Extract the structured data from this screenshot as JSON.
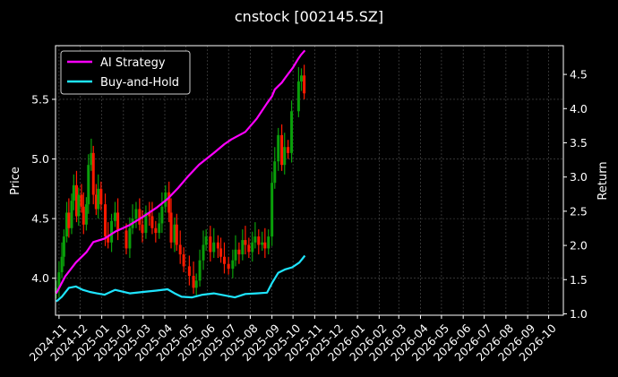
{
  "chart_data": {
    "type": "line",
    "title": "cnstock [002145.SZ]",
    "ylabel_left": "Price",
    "ylabel_right": "Return",
    "xlim": [
      "2024-10-27",
      "2026-10-22"
    ],
    "ylim_left": [
      3.69,
      5.95
    ],
    "ylim_right": [
      0.98,
      4.92
    ],
    "x_ticks": [
      "2024-11",
      "2024-12",
      "2025-01",
      "2025-02",
      "2025-03",
      "2025-04",
      "2025-05",
      "2025-06",
      "2025-07",
      "2025-08",
      "2025-09",
      "2025-10",
      "2025-11",
      "2025-12",
      "2026-01",
      "2026-02",
      "2026-03",
      "2026-04",
      "2026-05",
      "2026-06",
      "2026-07",
      "2026-08",
      "2026-09",
      "2026-10"
    ],
    "y_ticks_left": [
      "4.0",
      "4.5",
      "5.0",
      "5.5"
    ],
    "y_ticks_right": [
      "1.0",
      "1.5",
      "2.0",
      "2.5",
      "3.0",
      "3.5",
      "4.0",
      "4.5"
    ],
    "grid": true,
    "legend_position": "top-left",
    "price_series": {
      "style": "candles",
      "up_color": "#0a9f0a",
      "down_color": "#ff1a00",
      "dates": [
        "2024-10-28",
        "2024-11-01",
        "2024-11-05",
        "2024-11-08",
        "2024-11-12",
        "2024-11-15",
        "2024-11-19",
        "2024-11-22",
        "2024-11-26",
        "2024-11-29",
        "2024-12-03",
        "2024-12-06",
        "2024-12-10",
        "2024-12-13",
        "2024-12-17",
        "2024-12-20",
        "2024-12-24",
        "2024-12-27",
        "2024-12-31",
        "2025-01-06",
        "2025-01-10",
        "2025-01-15",
        "2025-01-20",
        "2025-01-24",
        "2025-02-05",
        "2025-02-10",
        "2025-02-14",
        "2025-02-19",
        "2025-02-24",
        "2025-02-28",
        "2025-03-05",
        "2025-03-10",
        "2025-03-14",
        "2025-03-19",
        "2025-03-24",
        "2025-03-28",
        "2025-04-02",
        "2025-04-07",
        "2025-04-10",
        "2025-04-15",
        "2025-04-18",
        "2025-04-23",
        "2025-04-28",
        "2025-05-06",
        "2025-05-12",
        "2025-05-16",
        "2025-05-21",
        "2025-05-26",
        "2025-05-30",
        "2025-06-05",
        "2025-06-10",
        "2025-06-16",
        "2025-06-20",
        "2025-06-25",
        "2025-07-01",
        "2025-07-07",
        "2025-07-11",
        "2025-07-16",
        "2025-07-21",
        "2025-07-25",
        "2025-07-30",
        "2025-08-04",
        "2025-08-08",
        "2025-08-13",
        "2025-08-18",
        "2025-08-22",
        "2025-08-27",
        "2025-09-01",
        "2025-09-05",
        "2025-09-10",
        "2025-09-15",
        "2025-09-19",
        "2025-09-24",
        "2025-09-29",
        "2025-10-09",
        "2025-10-13",
        "2025-10-17"
      ],
      "close": [
        3.92,
        4.05,
        4.18,
        4.35,
        4.55,
        4.42,
        4.65,
        4.78,
        4.52,
        4.7,
        4.6,
        4.45,
        4.62,
        4.95,
        5.05,
        4.7,
        4.58,
        4.75,
        4.62,
        4.35,
        4.3,
        4.48,
        4.55,
        4.4,
        4.25,
        4.42,
        4.5,
        4.58,
        4.45,
        4.38,
        4.55,
        4.52,
        4.42,
        4.38,
        4.46,
        4.6,
        4.72,
        4.55,
        4.3,
        4.45,
        4.28,
        4.2,
        4.1,
        4.02,
        3.92,
        3.98,
        4.15,
        4.28,
        4.35,
        4.22,
        4.3,
        4.25,
        4.18,
        4.12,
        4.08,
        4.15,
        4.24,
        4.2,
        4.32,
        4.28,
        4.22,
        4.3,
        4.35,
        4.28,
        4.3,
        4.25,
        4.35,
        4.8,
        4.98,
        5.2,
        4.95,
        5.1,
        5.05,
        5.4,
        5.65,
        5.7,
        5.55
      ]
    },
    "series": [
      {
        "name": "AI Strategy",
        "color": "#ff00ff",
        "axis": "right",
        "dates": [
          "2024-10-28",
          "2024-11-10",
          "2024-11-25",
          "2024-12-10",
          "2024-12-20",
          "2025-01-05",
          "2025-01-20",
          "2025-02-10",
          "2025-03-01",
          "2025-03-20",
          "2025-04-05",
          "2025-04-20",
          "2025-05-05",
          "2025-05-20",
          "2025-06-10",
          "2025-06-25",
          "2025-07-05",
          "2025-07-25",
          "2025-08-10",
          "2025-08-25",
          "2025-09-01",
          "2025-09-05",
          "2025-09-10",
          "2025-09-15",
          "2025-09-20",
          "2025-09-25",
          "2025-10-01",
          "2025-10-08",
          "2025-10-12",
          "2025-10-18"
        ],
        "values": [
          1.3,
          1.55,
          1.75,
          1.9,
          2.05,
          2.1,
          2.2,
          2.3,
          2.42,
          2.55,
          2.68,
          2.84,
          3.02,
          3.18,
          3.35,
          3.48,
          3.55,
          3.66,
          3.85,
          4.08,
          4.18,
          4.28,
          4.33,
          4.38,
          4.45,
          4.52,
          4.6,
          4.72,
          4.78,
          4.85
        ]
      },
      {
        "name": "Buy-and-Hold",
        "color": "#1ee5ff",
        "axis": "right",
        "dates": [
          "2024-10-28",
          "2024-11-05",
          "2024-11-15",
          "2024-11-25",
          "2024-12-05",
          "2024-12-15",
          "2024-12-25",
          "2025-01-05",
          "2025-01-20",
          "2025-02-10",
          "2025-03-01",
          "2025-03-20",
          "2025-04-05",
          "2025-04-15",
          "2025-04-25",
          "2025-05-10",
          "2025-05-25",
          "2025-06-10",
          "2025-06-25",
          "2025-07-10",
          "2025-07-25",
          "2025-08-10",
          "2025-08-25",
          "2025-09-01",
          "2025-09-10",
          "2025-09-20",
          "2025-09-30",
          "2025-10-10",
          "2025-10-18"
        ],
        "values": [
          1.18,
          1.25,
          1.38,
          1.4,
          1.35,
          1.32,
          1.3,
          1.28,
          1.35,
          1.3,
          1.32,
          1.34,
          1.36,
          1.3,
          1.25,
          1.24,
          1.28,
          1.3,
          1.27,
          1.24,
          1.29,
          1.3,
          1.31,
          1.45,
          1.6,
          1.65,
          1.68,
          1.75,
          1.85
        ]
      }
    ]
  }
}
